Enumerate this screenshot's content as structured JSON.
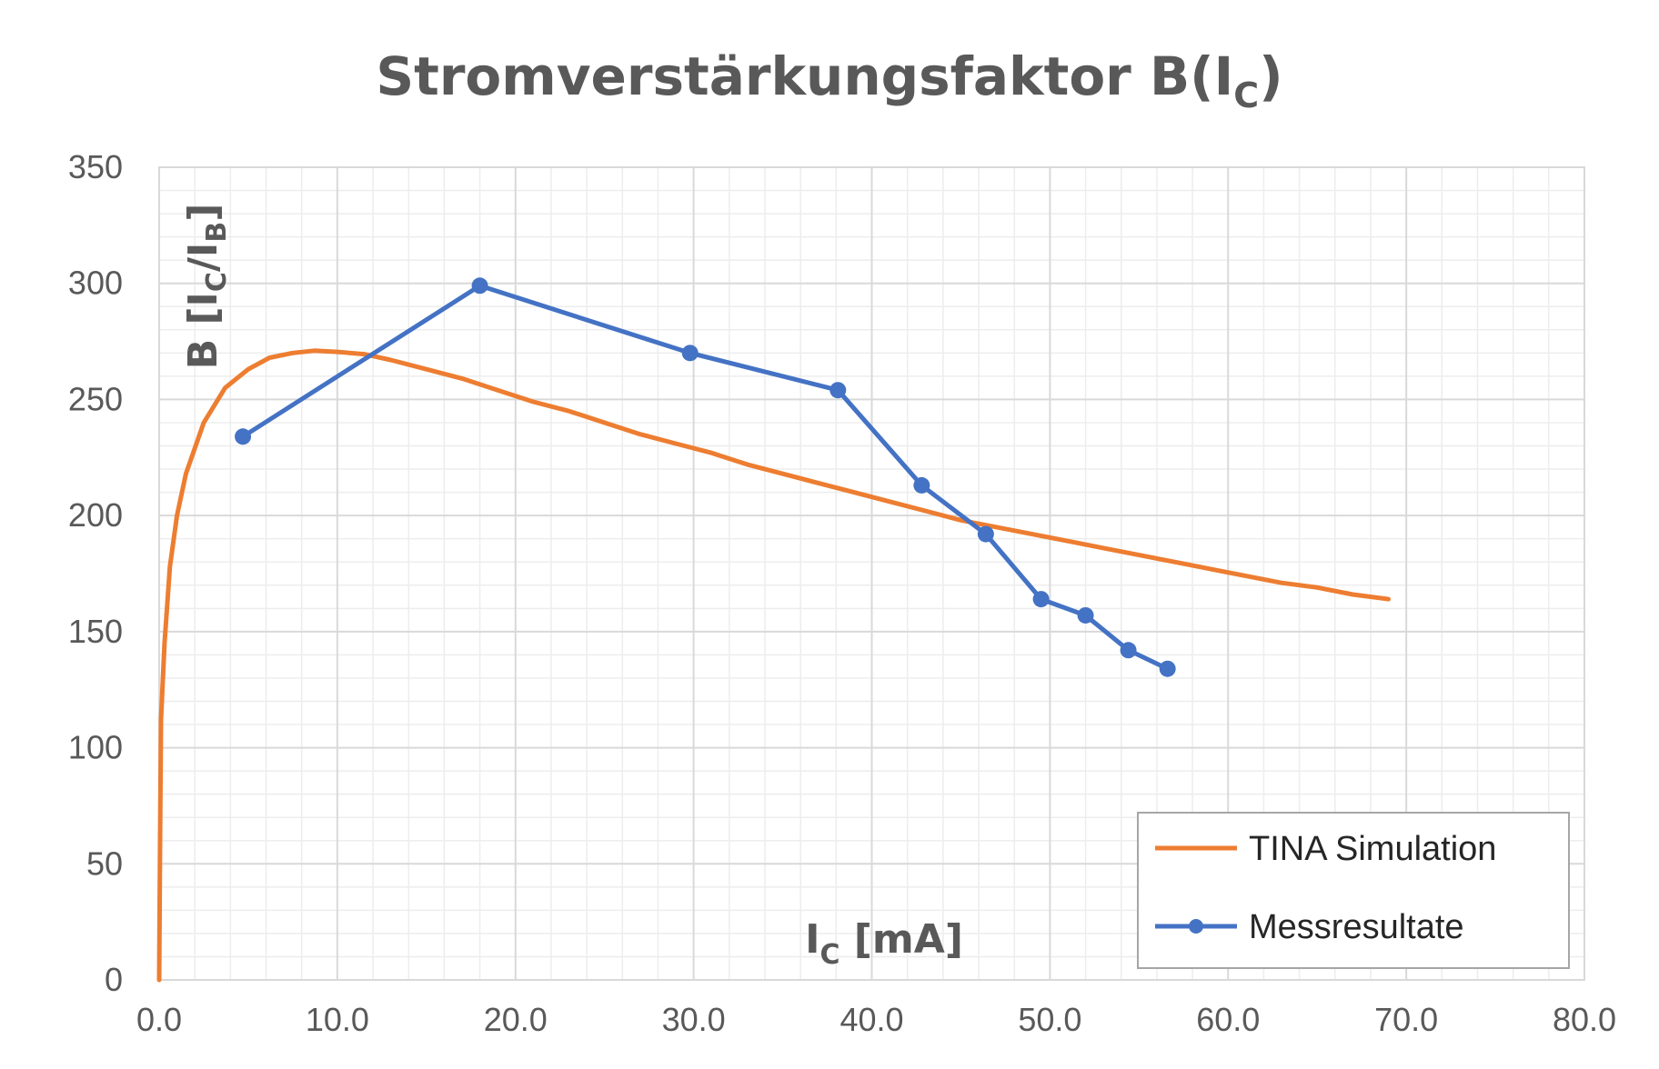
{
  "chart_data": {
    "type": "line",
    "title": {
      "main": "Stromverstärkungsfaktor B(I",
      "sub": "C",
      "end": ")"
    },
    "xlabel": {
      "main": "I",
      "sub": "C",
      "end": " [mA]"
    },
    "ylabel": {
      "pre": "B [I",
      "sub1": "C",
      "mid": "/I",
      "sub2": "B",
      "end": "]"
    },
    "xlim": [
      0,
      80
    ],
    "ylim": [
      0,
      350
    ],
    "x_ticks": [
      "0.0",
      "10.0",
      "20.0",
      "30.0",
      "40.0",
      "50.0",
      "60.0",
      "70.0",
      "80.0"
    ],
    "y_ticks": [
      "0",
      "50",
      "100",
      "150",
      "200",
      "250",
      "300",
      "350"
    ],
    "grid": true,
    "legend_position": "bottom-right",
    "series": [
      {
        "name": "TINA Simulation",
        "color": "#ED7D31",
        "markers": false,
        "x": [
          0.0,
          0.05,
          0.1,
          0.3,
          0.6,
          1.0,
          1.5,
          2.5,
          3.7,
          5.0,
          6.2,
          7.5,
          8.7,
          10.0,
          11.5,
          13.0,
          15.0,
          17.0,
          19.0,
          21.0,
          23.0,
          25.0,
          27.0,
          29.0,
          31.0,
          33.0,
          35.0,
          37.0,
          39.0,
          41.0,
          43.0,
          45.0,
          47.0,
          49.0,
          51.0,
          53.0,
          55.0,
          57.0,
          59.0,
          61.0,
          63.0,
          65.0,
          67.0,
          69.0
        ],
        "y": [
          0,
          60,
          112,
          145,
          178,
          200,
          218,
          240,
          255,
          263,
          268,
          270,
          271,
          270.5,
          269.5,
          267,
          263,
          259,
          254,
          249,
          245,
          240,
          235,
          231,
          227,
          222,
          218,
          214,
          210,
          206,
          202,
          198,
          195,
          192,
          189,
          186,
          183,
          180,
          177,
          174,
          171,
          169,
          166,
          164
        ]
      },
      {
        "name": "Messresultate",
        "color": "#4472C4",
        "markers": true,
        "x": [
          4.7,
          18.0,
          29.8,
          38.1,
          42.8,
          46.4,
          49.5,
          52.0,
          54.4,
          56.6
        ],
        "y": [
          234,
          299,
          270,
          254,
          213,
          192,
          164,
          157,
          142,
          134
        ]
      }
    ]
  }
}
